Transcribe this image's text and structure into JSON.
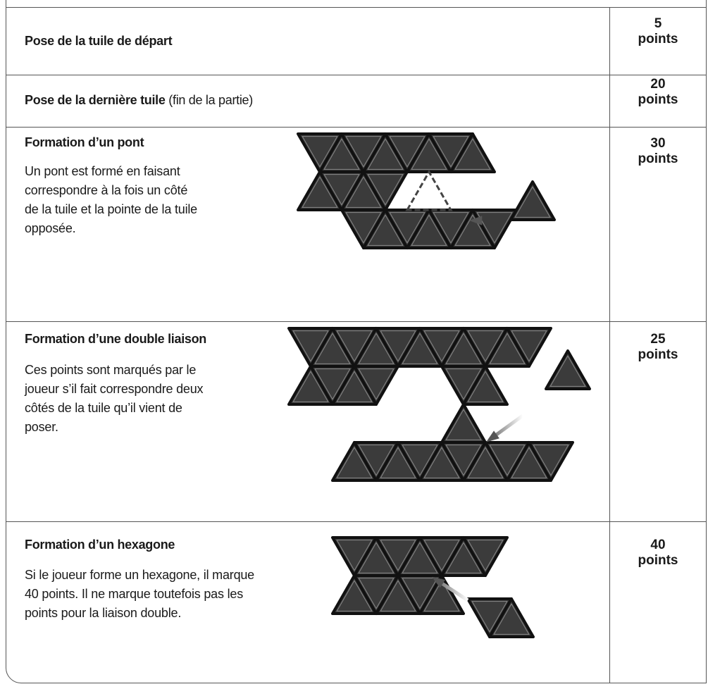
{
  "rows": [
    {
      "title": "Pose de la tuile de départ",
      "points": "5",
      "unit": "points"
    },
    {
      "title": "Pose de la dernière tuile",
      "title_note": "(fin de la partie)",
      "points": "20",
      "unit": "points"
    },
    {
      "title": "Formation d’un pont",
      "text": [
        "Un pont est formé en faisant",
        "correspondre à la fois un côté",
        "de la tuile et la pointe de la tuile",
        "opposée."
      ],
      "points": "30",
      "unit": "points"
    },
    {
      "title": "Formation d’une double liaison",
      "text": [
        "Ces points sont marqués par le",
        "joueur s’il fait correspondre deux",
        "côtés de la tuile qu’il vient de",
        "poser."
      ],
      "points": "25",
      "unit": "points"
    },
    {
      "title": "Formation d’un hexagone",
      "text": [
        "Si le joueur forme un hexagone, il marque",
        "40 points. Il ne marque toutefois pas les",
        "points pour la liaison double."
      ],
      "points": "40",
      "unit": "points"
    }
  ]
}
